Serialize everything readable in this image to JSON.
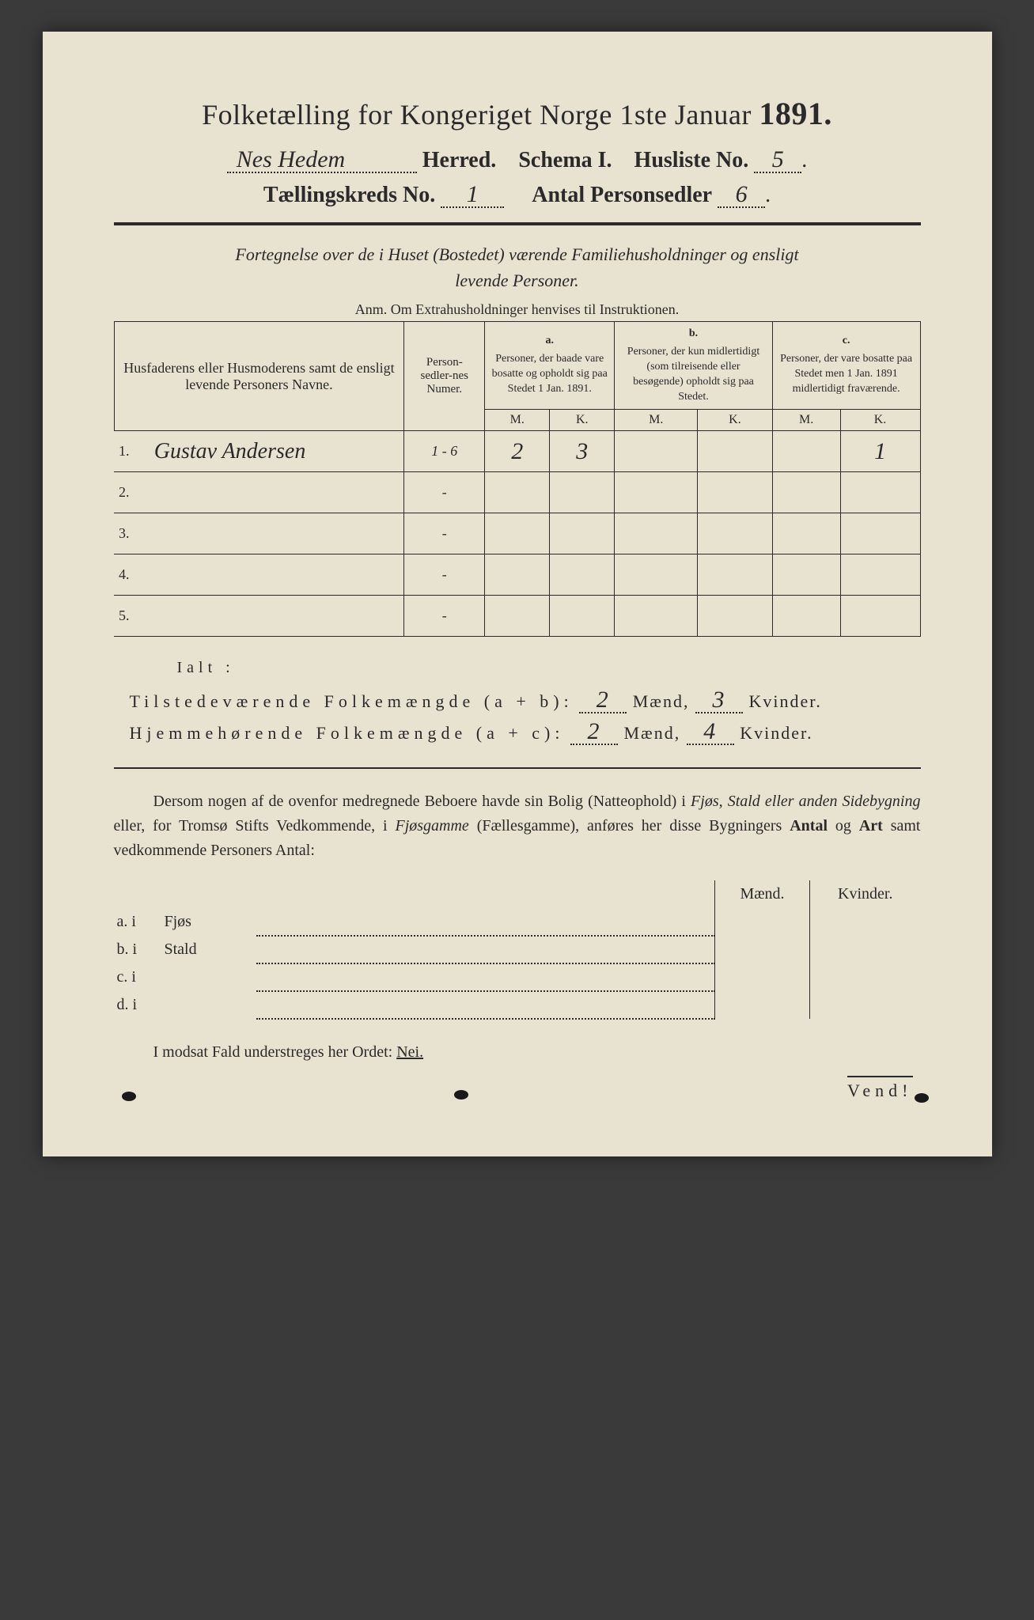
{
  "colors": {
    "paper": "#e8e2d0",
    "ink": "#2a2a2a",
    "background": "#3a3a3a",
    "handwriting": "#2a2a2a"
  },
  "fonts": {
    "print_family": "Times New Roman, Georgia, serif",
    "script_family": "Brush Script MT, Comic Sans MS, cursive",
    "title_size_pt": 27,
    "body_size_pt": 15
  },
  "header": {
    "title_left": "Folketælling for Kongeriget Norge 1ste Januar",
    "year": "1891.",
    "herred_value": "Nes Hedem",
    "herred_label": "Herred.",
    "schema_label": "Schema I.",
    "husliste_label": "Husliste No.",
    "husliste_value": "5",
    "kreds_label": "Tællingskreds No.",
    "kreds_value": "1",
    "sedler_label": "Antal Personsedler",
    "sedler_value": "6"
  },
  "intro": {
    "line1": "Fortegnelse over de i Huset (Bostedet) værende Familiehusholdninger og ensligt",
    "line2": "levende Personer.",
    "anm": "Anm. Om Extrahusholdninger henvises til Instruktionen."
  },
  "table": {
    "col_name": "Husfaderens eller Husmoderens samt de ensligt levende Personers Navne.",
    "col_num": "Person-sedler-nes Numer.",
    "col_a_lbl": "a.",
    "col_a": "Personer, der baade vare bosatte og opholdt sig paa Stedet 1 Jan. 1891.",
    "col_b_lbl": "b.",
    "col_b": "Personer, der kun midlertidigt (som tilreisende eller besøgende) opholdt sig paa Stedet.",
    "col_c_lbl": "c.",
    "col_c": "Personer, der vare bosatte paa Stedet men 1 Jan. 1891 midlertidigt fraværende.",
    "mk_m": "M.",
    "mk_k": "K.",
    "rows": [
      {
        "n": "1.",
        "name": "Gustav Andersen",
        "num": "1 - 6",
        "a_m": "2",
        "a_k": "3",
        "b_m": "",
        "b_k": "",
        "c_m": "",
        "c_k": "1"
      },
      {
        "n": "2.",
        "name": "",
        "num": "-",
        "a_m": "",
        "a_k": "",
        "b_m": "",
        "b_k": "",
        "c_m": "",
        "c_k": ""
      },
      {
        "n": "3.",
        "name": "",
        "num": "-",
        "a_m": "",
        "a_k": "",
        "b_m": "",
        "b_k": "",
        "c_m": "",
        "c_k": ""
      },
      {
        "n": "4.",
        "name": "",
        "num": "-",
        "a_m": "",
        "a_k": "",
        "b_m": "",
        "b_k": "",
        "c_m": "",
        "c_k": ""
      },
      {
        "n": "5.",
        "name": "",
        "num": "-",
        "a_m": "",
        "a_k": "",
        "b_m": "",
        "b_k": "",
        "c_m": "",
        "c_k": ""
      }
    ]
  },
  "totals": {
    "ialt": "Ialt :",
    "row1_label": "Tilstedeværende Folkemængde (a + b):",
    "row1_m": "2",
    "row1_k": "3",
    "row2_label": "Hjemmehørende Folkemængde (a + c):",
    "row2_m": "2",
    "row2_k": "4",
    "maend": "Mænd,",
    "kvinder": "Kvinder."
  },
  "para": {
    "text1": "Dersom nogen af de ovenfor medregnede Beboere havde sin Bolig (Natteophold) i ",
    "it1": "Fjøs, Stald eller anden Sidebygning",
    "text2": " eller, for Tromsø Stifts Vedkommende, i ",
    "it2": "Fjøsgamme",
    "text3": " (Fællesgamme), anføres her disse Bygningers ",
    "b1": "Antal",
    "text4": " og ",
    "b2": "Art",
    "text5": " samt vedkommende Personers Antal:"
  },
  "bldg": {
    "hdr_m": "Mænd.",
    "hdr_k": "Kvinder.",
    "rows": [
      {
        "lab": "a.  i",
        "kind": "Fjøs"
      },
      {
        "lab": "b.  i",
        "kind": "Stald"
      },
      {
        "lab": "c.  i",
        "kind": ""
      },
      {
        "lab": "d.  i",
        "kind": ""
      }
    ]
  },
  "nei": {
    "text": "I modsat Fald understreges her Ordet: ",
    "word": "Nei."
  },
  "vend": "Vend!"
}
